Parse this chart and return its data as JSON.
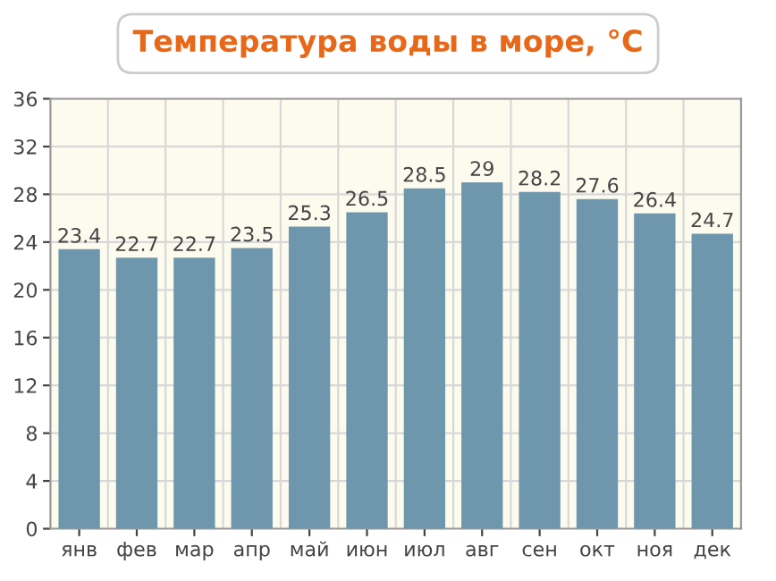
{
  "chart_data": {
    "type": "bar",
    "title": "Температура воды в море, °C",
    "categories": [
      "янв",
      "фев",
      "мар",
      "апр",
      "май",
      "июн",
      "июл",
      "авг",
      "сен",
      "окт",
      "ноя",
      "дек"
    ],
    "values": [
      23.4,
      22.7,
      22.7,
      23.5,
      25.3,
      26.5,
      28.5,
      29,
      28.2,
      27.6,
      26.4,
      24.7
    ],
    "color": "#6e97ad",
    "ylim": [
      0,
      36
    ],
    "yticks": [
      0,
      4,
      8,
      12,
      16,
      20,
      24,
      28,
      32,
      36
    ],
    "grid": true,
    "data_labels": true
  }
}
